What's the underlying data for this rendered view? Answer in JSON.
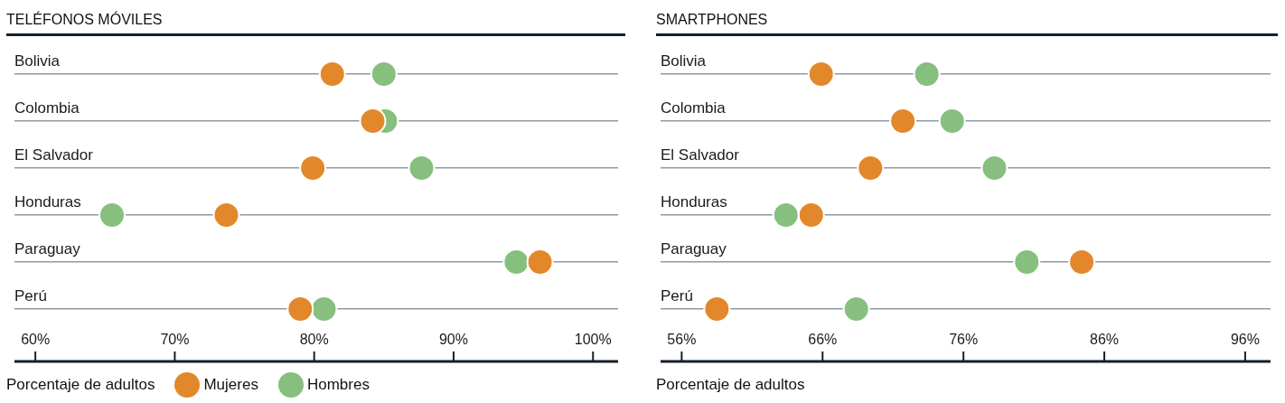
{
  "chart_data": [
    {
      "type": "scatter",
      "title": "TELÉFONOS MÓVILES",
      "xlabel": "Porcentaje de adultos",
      "orientation": "horizontal",
      "categories": [
        "Bolivia",
        "Colombia",
        "El Salvador",
        "Honduras",
        "Paraguay",
        "Perú"
      ],
      "series": [
        {
          "name": "Mujeres",
          "color": "#e3882a",
          "values": [
            81.3,
            84.2,
            79.9,
            73.7,
            96.2,
            79.0
          ]
        },
        {
          "name": "Hombres",
          "color": "#86bf7e",
          "values": [
            85.0,
            85.1,
            87.7,
            65.5,
            94.5,
            80.7
          ]
        }
      ],
      "xlim": [
        58.5,
        101.8
      ],
      "xticks": [
        {
          "value": 60,
          "label": "60%"
        },
        {
          "value": 70,
          "label": "70%"
        },
        {
          "value": 80,
          "label": "80%"
        },
        {
          "value": 90,
          "label": "90%"
        },
        {
          "value": 100,
          "label": "100%"
        }
      ],
      "grid": "y",
      "marker": "circle",
      "legend": "bottom"
    },
    {
      "type": "scatter",
      "title": "SMARTPHONES",
      "xlabel": "Porcentaje de adultos",
      "orientation": "horizontal",
      "categories": [
        "Bolivia",
        "Colombia",
        "El Salvador",
        "Honduras",
        "Paraguay",
        "Perú"
      ],
      "series": [
        {
          "color": "#e3882a",
          "values": [
            65.9,
            71.7,
            69.4,
            65.2,
            84.4,
            58.5
          ]
        },
        {
          "color": "#86bf7e",
          "values": [
            73.4,
            75.2,
            78.2,
            63.4,
            80.5,
            68.4
          ]
        }
      ],
      "xlim": [
        54.5,
        97.8
      ],
      "xticks": [
        {
          "value": 56,
          "label": "56%"
        },
        {
          "value": 66,
          "label": "66%"
        },
        {
          "value": 76,
          "label": "76%"
        },
        {
          "value": 86,
          "label": "86%"
        },
        {
          "value": 96,
          "label": "96%"
        }
      ],
      "grid": "y",
      "marker": "circle",
      "legend": false
    }
  ]
}
